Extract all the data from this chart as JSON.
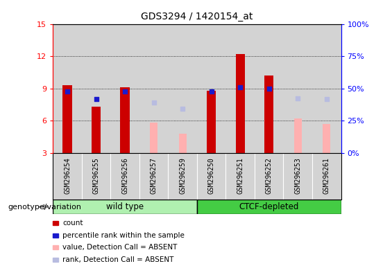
{
  "title": "GDS3294 / 1420154_at",
  "samples": [
    "GSM296254",
    "GSM296255",
    "GSM296256",
    "GSM296257",
    "GSM296259",
    "GSM296250",
    "GSM296251",
    "GSM296252",
    "GSM296253",
    "GSM296261"
  ],
  "count_values": [
    9.3,
    7.3,
    9.1,
    null,
    null,
    8.8,
    12.2,
    10.2,
    null,
    null
  ],
  "percentile_values": [
    8.7,
    8.0,
    8.7,
    null,
    null,
    8.7,
    9.1,
    9.0,
    null,
    null
  ],
  "absent_value_values": [
    null,
    null,
    null,
    5.8,
    4.8,
    null,
    null,
    null,
    6.2,
    5.7
  ],
  "absent_rank_values": [
    null,
    null,
    null,
    7.7,
    7.1,
    null,
    null,
    null,
    8.1,
    8.0
  ],
  "ylim_left": [
    3,
    15
  ],
  "ylim_right": [
    0,
    100
  ],
  "yticks_left": [
    3,
    6,
    9,
    12,
    15
  ],
  "yticks_right": [
    0,
    25,
    50,
    75,
    100
  ],
  "colors": {
    "count": "#cc0000",
    "percentile": "#1a1acc",
    "absent_value": "#ffb0b0",
    "absent_rank": "#b8bce0",
    "background": "#ffffff",
    "bar_bg": "#d3d3d3",
    "wt_color": "#b0f0b0",
    "ctcf_color": "#44cc44"
  },
  "legend_items": [
    {
      "label": "count",
      "color": "#cc0000"
    },
    {
      "label": "percentile rank within the sample",
      "color": "#1a1acc"
    },
    {
      "label": "value, Detection Call = ABSENT",
      "color": "#ffb0b0"
    },
    {
      "label": "rank, Detection Call = ABSENT",
      "color": "#b8bce0"
    }
  ],
  "genotype_label": "genotype/variation",
  "bar_width": 0.32,
  "wt_group": {
    "name": "wild type",
    "start": 0,
    "end": 5
  },
  "ctcf_group": {
    "name": "CTCF-depleted",
    "start": 5,
    "end": 10
  }
}
